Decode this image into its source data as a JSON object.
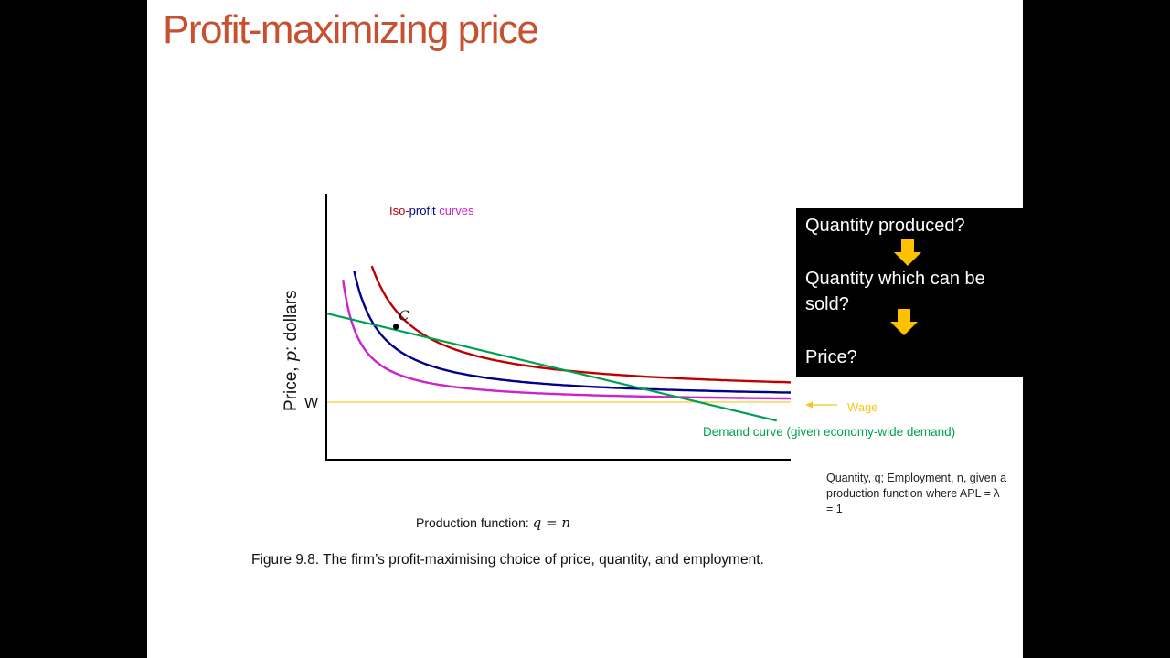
{
  "slide": {
    "title": "Profit-maximizing price",
    "caption": "Figure 9.8. The firm’s profit-maximising choice of price, quantity, and employment.",
    "production_function": {
      "label": "Production function: ",
      "equation": "q = n"
    },
    "quantity_note": "Quantity, q; Employment, n, given a production function where APL = λ = 1"
  },
  "callout": {
    "items": [
      "Quantity produced?",
      "Quantity which can be",
      "sold?",
      "Price?"
    ],
    "arrow_icon": "down-arrow-icon",
    "arrow_color": "#ffc000"
  },
  "chart_data": {
    "type": "line",
    "title": "",
    "ylabel_prefix": "Price, ",
    "ylabel_var": "p",
    "ylabel_suffix": ": dollars",
    "xlabel": "",
    "y_tick_label": "W",
    "iso_profit_label": {
      "part1": "Iso-",
      "part2": "profit",
      "part3": " curves"
    },
    "wage_label": "Wage",
    "demand_label": "Demand curve (given economy-wide demand)",
    "point_label": "C",
    "xlim": [
      0,
      10
    ],
    "ylim": [
      0,
      6
    ],
    "wage": 1.3,
    "grid": false,
    "colors": {
      "red": "#c00000",
      "blue": "#00008b",
      "magenta": "#cc22cc",
      "green": "#00a050",
      "wage": "#f5c518",
      "title": "#c65030"
    },
    "iso_profit_curves": [
      {
        "color": "red",
        "wage_gap": 1.75
      },
      {
        "color": "blue",
        "wage_gap": 1.0
      },
      {
        "color": "magenta",
        "wage_gap": 0.55
      }
    ],
    "demand_curve": {
      "x": [
        0,
        9.7
      ],
      "y": [
        3.3,
        0.88
      ]
    },
    "point_C": {
      "x": 1.5,
      "y": 3.0
    }
  }
}
